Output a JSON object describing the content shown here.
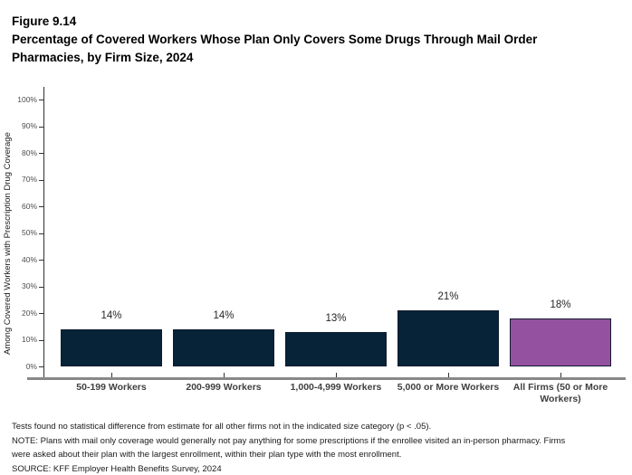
{
  "header": {
    "figure_label": "Figure 9.14",
    "title_lines": [
      "Percentage of Covered Workers Whose Plan Only Covers Some Drugs Through Mail Order",
      "Pharmacies, by Firm Size, 2024"
    ]
  },
  "chart_data": {
    "type": "bar",
    "title": "Percentage of Covered Workers Whose Plan Only Covers Some Drugs Through Mail Order Pharmacies, by Firm Size, 2024",
    "ylabel": "Among Covered Workers with Prescription Drug Coverage",
    "xlabel": "",
    "categories": [
      "50-199 Workers",
      "200-999 Workers",
      "1,000-4,999 Workers",
      "5,000 or More Workers",
      "All Firms (50 or More Workers)"
    ],
    "values": [
      14,
      14,
      13,
      21,
      18
    ],
    "value_labels": [
      "14%",
      "14%",
      "13%",
      "21%",
      "18%"
    ],
    "bar_colors": [
      "#062337",
      "#062337",
      "#062337",
      "#062337",
      "#94519F"
    ],
    "bar_border_color": "#101B2D",
    "ylim": [
      0,
      100
    ],
    "yticks": [
      0,
      10,
      20,
      30,
      40,
      50,
      60,
      70,
      80,
      90,
      100
    ],
    "ytick_labels": [
      "0%",
      "10%",
      "20%",
      "30%",
      "40%",
      "50%",
      "60%",
      "70%",
      "80%",
      "90%",
      "100%"
    ],
    "grid": false,
    "legend": false
  },
  "colors": {
    "bar_navy": "#062337",
    "bar_purple": "#94519F",
    "x_axis_line": "#888888",
    "y_axis_line": "#333333",
    "y_tick_label": "#4D4D4D",
    "category_label": "#404040",
    "title_text": "#000000"
  },
  "footnotes": {
    "lines": [
      "Tests found no statistical difference from estimate for all other firms not in the indicated size category (p < .05).",
      "NOTE: Plans with mail only coverage would generally not pay anything for some prescriptions if the enrollee visited an in-person pharmacy.  Firms",
      "were asked about their plan with the largest enrollment, within their plan type with the most enrollment.",
      "SOURCE: KFF Employer Health Benefits Survey, 2024"
    ]
  }
}
